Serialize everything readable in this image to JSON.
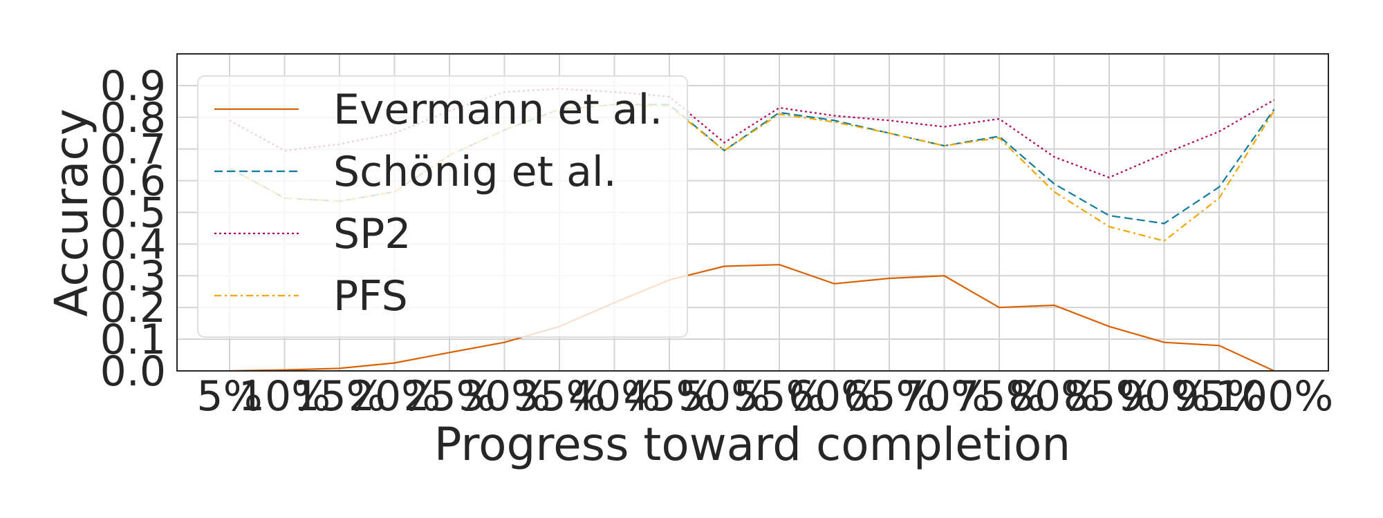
{
  "chart_data": {
    "type": "line",
    "xlabel": "Progress toward completion",
    "ylabel": "Accuracy",
    "categories": [
      "5%",
      "10%",
      "15%",
      "20%",
      "25%",
      "30%",
      "35%",
      "40%",
      "45%",
      "50%",
      "55%",
      "60%",
      "65%",
      "70%",
      "75%",
      "80%",
      "85%",
      "90%",
      "95%",
      "100%"
    ],
    "yticks": [
      "0.0",
      "0.1",
      "0.2",
      "0.3",
      "0.4",
      "0.5",
      "0.6",
      "0.7",
      "0.8",
      "0.9"
    ],
    "ylim": [
      0.0,
      1.0
    ],
    "grid": true,
    "legend_position": "upper-left",
    "series": [
      {
        "name": "Evermann et al.",
        "color": "#d95f02",
        "style": "solid",
        "values": [
          0.0,
          0.003,
          0.008,
          0.025,
          0.058,
          0.09,
          0.14,
          0.215,
          0.287,
          0.33,
          0.335,
          0.275,
          0.292,
          0.3,
          0.2,
          0.207,
          0.14,
          0.09,
          0.08,
          0.0
        ]
      },
      {
        "name": "Schönig et al.",
        "color": "#0f7b9c",
        "style": "dashed",
        "values": [
          0.64,
          0.545,
          0.535,
          0.565,
          0.68,
          0.76,
          0.825,
          0.84,
          0.84,
          0.695,
          0.815,
          0.79,
          0.75,
          0.71,
          0.74,
          0.59,
          0.49,
          0.465,
          0.58,
          0.825
        ]
      },
      {
        "name": "SP2",
        "color": "#b0005b",
        "style": "dotted",
        "values": [
          0.79,
          0.695,
          0.715,
          0.75,
          0.82,
          0.88,
          0.89,
          0.88,
          0.865,
          0.72,
          0.83,
          0.805,
          0.79,
          0.77,
          0.795,
          0.675,
          0.61,
          0.685,
          0.755,
          0.855
        ]
      },
      {
        "name": "PFS",
        "color": "#f0a500",
        "style": "dashdot",
        "values": [
          0.64,
          0.545,
          0.535,
          0.565,
          0.68,
          0.76,
          0.825,
          0.84,
          0.835,
          0.695,
          0.81,
          0.785,
          0.75,
          0.71,
          0.735,
          0.565,
          0.455,
          0.41,
          0.545,
          0.82
        ]
      }
    ]
  }
}
